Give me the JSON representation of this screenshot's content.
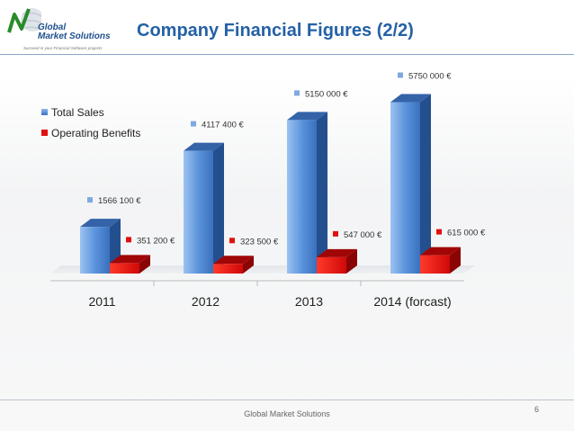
{
  "slide": {
    "title": "Company Financial Figures (2/2)",
    "footer": "Global Market Solutions",
    "page_number": "6"
  },
  "logo": {
    "line1": "Global",
    "line2": "Market Solutions",
    "tagline": "Succeed in your Financial Software projects"
  },
  "colors": {
    "total_sales": "#4a84d2",
    "operating_benefits": "#e01010",
    "title": "#2461a6"
  },
  "chart_data": {
    "type": "bar",
    "title": "",
    "xlabel": "",
    "ylabel": "",
    "categories": [
      "2011",
      "2012",
      "2013",
      "2014 (forcast)"
    ],
    "series": [
      {
        "name": "Total Sales",
        "values": [
          1566100,
          4117400,
          5150000,
          5750000
        ],
        "labels": [
          "1566 100 €",
          "4117 400 €",
          "5150 000 €",
          "5750 000 €"
        ]
      },
      {
        "name": "Operating Benefits",
        "values": [
          351200,
          323500,
          547000,
          615000
        ],
        "labels": [
          "351 200 €",
          "323 500 €",
          "547 000 €",
          "615 000 €"
        ]
      }
    ],
    "ylim": [
      0,
      6400000
    ],
    "grid": false,
    "legend": "top-left",
    "style": "3d-clustered"
  }
}
